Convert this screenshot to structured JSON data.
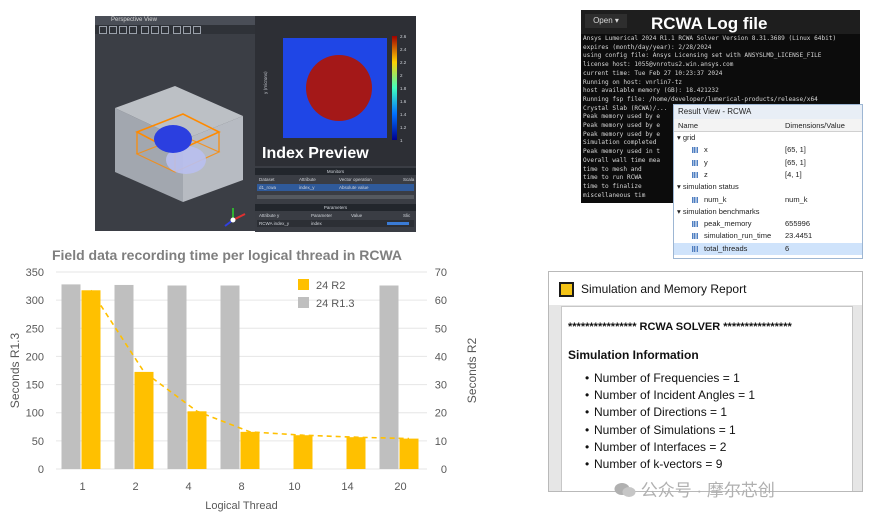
{
  "perspective": {
    "title": "Perspective View"
  },
  "index_preview": {
    "title": "Index Preview",
    "tab_monitors": "Monitors",
    "tab_parameters": "Parameters",
    "cols": [
      "Dataset",
      "Attribute",
      "Vector operation",
      "Scala"
    ],
    "row": [
      "d1_rcwa",
      "index_y",
      "Absolute value",
      ""
    ],
    "cols2": [
      "Attribute y",
      "Parameter",
      "Value",
      "Slic"
    ],
    "row2": [
      "RCWA index_y",
      "index",
      "",
      ""
    ],
    "colorbar_ticks": [
      "2.6",
      "2.4",
      "2.2",
      "2",
      "1.8",
      "1.6",
      "1.4",
      "1.2",
      "1"
    ],
    "colors": {
      "disk": "#a41818",
      "field": "#1f46e6"
    }
  },
  "log": {
    "open_label": "Open",
    "title": "RCWA Log file",
    "lines": [
      "Ansys Lumerical 2024 R1.1 RCWA Solver Version 8.31.3689 (Linux 64bit)",
      " expires (month/day/year): 2/28/2024",
      "using config file: Ansys Licensing set with ANSYSLMD_LICENSE_FILE",
      "license host: 1055@vnrotus2.win.ansys.com",
      "current time: Tue Feb 27 10:23:37 2024",
      "Running on host: vnrlin7-tz",
      "host available memory (GB): 18.421232",
      "Running fsp file: /home/developer/lumerical-products/release/x64",
      "Crystal Slab (RCWA)/...",
      "Peak memory used by e",
      "Peak memory used by e",
      "Peak memory used by e",
      "Simulation completed",
      "Peak memory used in t",
      "Overall wall time mea",
      "    time to mesh and",
      "    time to run RCWA",
      "    time to finalize",
      "    miscellaneous tim"
    ]
  },
  "result_view": {
    "title": "Result View - RCWA",
    "col_name": "Name",
    "col_value": "Dimensions/Value",
    "rows": [
      {
        "name": "grid",
        "value": "",
        "level": 0,
        "group": true
      },
      {
        "name": "x",
        "value": "[65, 1]",
        "level": 1,
        "group": false
      },
      {
        "name": "y",
        "value": "[65, 1]",
        "level": 1,
        "group": false
      },
      {
        "name": "z",
        "value": "[4, 1]",
        "level": 1,
        "group": false
      },
      {
        "name": "simulation status",
        "value": "",
        "level": 0,
        "group": true
      },
      {
        "name": "num_k",
        "value": "num_k",
        "level": 1,
        "group": false
      },
      {
        "name": "simulation benchmarks",
        "value": "",
        "level": 0,
        "group": true
      },
      {
        "name": "peak_memory",
        "value": "655996",
        "level": 1,
        "group": false
      },
      {
        "name": "simulation_run_time",
        "value": "23.4451",
        "level": 1,
        "group": false
      },
      {
        "name": "total_threads",
        "value": "6",
        "level": 1,
        "group": false
      }
    ]
  },
  "chart_data": {
    "type": "bar",
    "title": "Field data recording time per logical thread in RCWA",
    "xlabel": "Logical Thread",
    "ylabel_left": "Seconds R1.3",
    "ylabel_right": "Seconds R2",
    "categories": [
      "1",
      "2",
      "4",
      "8",
      "10",
      "14",
      "20"
    ],
    "ylim_left": [
      0,
      350
    ],
    "ylim_right": [
      0,
      70
    ],
    "left_ticks": [
      0,
      50,
      100,
      150,
      200,
      250,
      300,
      350
    ],
    "right_ticks": [
      0,
      10,
      20,
      30,
      40,
      50,
      60,
      70
    ],
    "series": [
      {
        "name": "24 R2",
        "axis": "right",
        "color": "#ffc000",
        "values": [
          63.5,
          34.5,
          20.5,
          13.2,
          12,
          11.3,
          10.8
        ]
      },
      {
        "name": "24 R1.3",
        "axis": "left",
        "color": "#bfbfbf",
        "values": [
          328,
          327,
          326,
          326,
          null,
          null,
          326
        ]
      }
    ],
    "trendline": {
      "series": "24 R2",
      "style": "dashed",
      "color": "#ffc000"
    },
    "legend_position": "top-center",
    "grid": true
  },
  "report": {
    "title": "Simulation and Memory Report",
    "solver_line": "**************** RCWA SOLVER ****************",
    "section": "Simulation Information",
    "items": [
      "Number of Frequencies = 1",
      "Number of Incident Angles = 1",
      "Number of Directions = 1",
      "Number of Simulations = 1",
      "Number of Interfaces = 2",
      "Number of k-vectors = 9"
    ]
  },
  "watermark": "公众号 · 摩尔芯创"
}
